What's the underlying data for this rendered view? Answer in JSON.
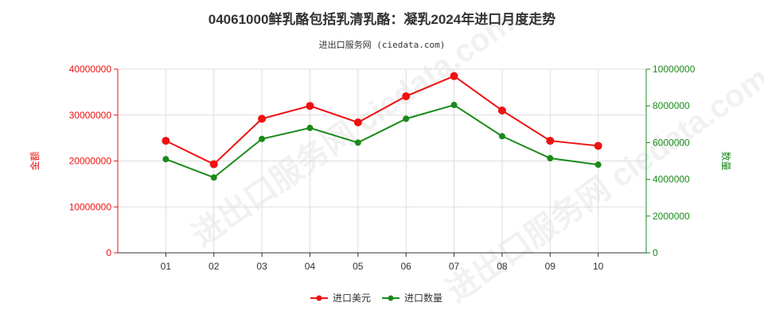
{
  "header": {
    "title": "04061000鲜乳酪包括乳清乳酪：凝乳2024年进口月度走势",
    "subtitle": "进出口服务网 (ciedata.com)"
  },
  "watermark": "进出口服务网 ciedata.com",
  "chart_data": {
    "type": "line",
    "categories": [
      "01",
      "02",
      "03",
      "04",
      "05",
      "06",
      "07",
      "08",
      "09",
      "10"
    ],
    "series": [
      {
        "name": "进口美元",
        "axis": "left",
        "color": "#ee1111",
        "values": [
          24400000,
          19300000,
          29200000,
          32000000,
          28400000,
          34100000,
          38500000,
          31000000,
          24400000,
          23300000
        ]
      },
      {
        "name": "进口数量",
        "axis": "right",
        "color": "#1a8a1a",
        "values": [
          5100000,
          4100000,
          6200000,
          6800000,
          6000000,
          7300000,
          8050000,
          6350000,
          5150000,
          4800000
        ]
      }
    ],
    "y_left": {
      "label": "金额",
      "ticks": [
        "0",
        "10000000",
        "20000000",
        "30000000",
        "40000000"
      ],
      "ylim": [
        0,
        40000000
      ],
      "color": "#ee1111"
    },
    "y_right": {
      "label": "数量",
      "ticks": [
        "0",
        "2000000",
        "4000000",
        "6000000",
        "8000000",
        "10000000"
      ],
      "ylim": [
        0,
        10000000
      ],
      "color": "#1a8a1a"
    },
    "grid": true,
    "legend": "bottom-center"
  }
}
